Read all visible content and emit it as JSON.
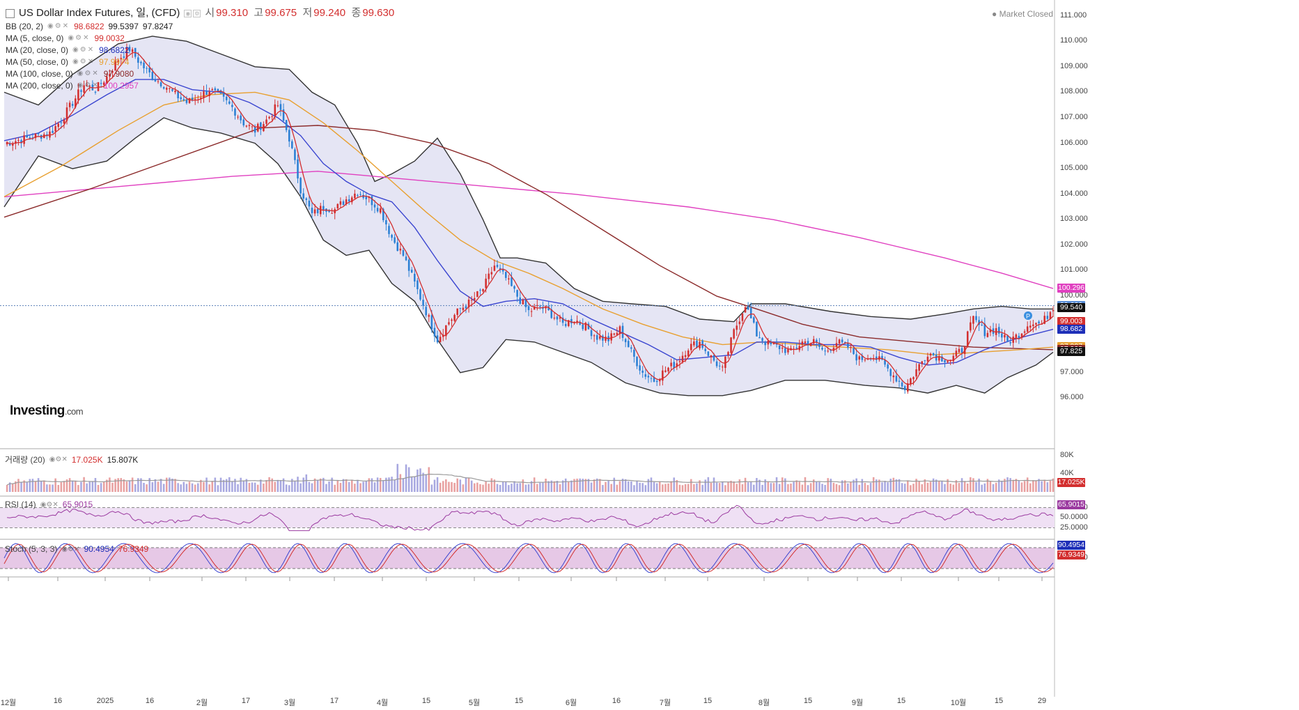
{
  "header": {
    "title": "US Dollar Index Futures, 일, (CFD)",
    "open_label": "시",
    "open": "99.310",
    "high_label": "고",
    "high": "99.675",
    "low_label": "저",
    "low": "99.240",
    "close_label": "종",
    "close": "99.630",
    "market_status": "Market Closed"
  },
  "indicators": [
    {
      "label": "BB (20, 2)",
      "v1": "98.6822",
      "v2": "99.5397",
      "v3": "97.8247",
      "color": "#d32f2f"
    },
    {
      "label": "MA (5, close, 0)",
      "v1": "99.0032",
      "color": "#d32f2f"
    },
    {
      "label": "MA (20, close, 0)",
      "v1": "98.6822",
      "color": "#1e2fb8"
    },
    {
      "label": "MA (50, close, 0)",
      "v1": "97.9974",
      "color": "#e8a030"
    },
    {
      "label": "MA (100, close, 0)",
      "v1": "97.9080",
      "color": "#8b2a2a"
    },
    {
      "label": "MA (200, close, 0)",
      "v1": "100.2957",
      "color": "#e040c0"
    }
  ],
  "volume_legend": {
    "label": "거래량 (20)",
    "v1": "17.025K",
    "v2": "15.807K"
  },
  "rsi_legend": {
    "label": "RSI (14)",
    "v1": "65.9015"
  },
  "stoch_legend": {
    "label": "Stoch (5, 3, 3)",
    "v1": "90.4954",
    "v2": "76.9349"
  },
  "logo": {
    "brand": "Investing",
    "suffix": ".com"
  },
  "price_tags": [
    {
      "text": "100.296",
      "value": 100.296,
      "color": "#e040c0"
    },
    {
      "text": "99.630",
      "value": 99.63,
      "color": "#5a8fd8"
    },
    {
      "text": "99.540",
      "value": 99.54,
      "color": "#111111"
    },
    {
      "text": "99.003",
      "value": 99.003,
      "color": "#d32f2f"
    },
    {
      "text": "98.682",
      "value": 98.682,
      "color": "#1e2fb8"
    },
    {
      "text": "97.997",
      "value": 97.997,
      "color": "#e8a030"
    },
    {
      "text": "97.908",
      "value": 97.908,
      "color": "#8b2a2a"
    },
    {
      "text": "97.825",
      "value": 97.825,
      "color": "#111111"
    }
  ],
  "volume_tags": [
    {
      "text": "17.025K",
      "color": "#d32f2f"
    }
  ],
  "rsi_tags": [
    {
      "text": "65.9015",
      "color": "#9b3aa0"
    }
  ],
  "stoch_tags": [
    {
      "text": "90.4954",
      "color": "#1e2fb8"
    },
    {
      "text": "76.9349",
      "color": "#d32f2f"
    }
  ],
  "chart_data": {
    "type": "line",
    "ylim": [
      95.0,
      111.4
    ],
    "yticks": [
      "111.000",
      "110.000",
      "109.000",
      "108.000",
      "107.000",
      "106.000",
      "105.000",
      "104.000",
      "103.000",
      "102.000",
      "101.000",
      "100.000",
      "97.000",
      "96.000"
    ],
    "ytick_values": [
      111,
      110,
      109,
      108,
      107,
      106,
      105,
      104,
      103,
      102,
      101,
      100,
      97,
      96
    ],
    "volume_ticks": [
      "80K",
      "40K"
    ],
    "volume_tick_values": [
      80000,
      40000
    ],
    "rsi_ticks": [
      "75.0000",
      "50.0000",
      "25.0000"
    ],
    "rsi_tick_values": [
      75,
      50,
      25
    ],
    "stoch_ticks": [
      "50.0000"
    ],
    "stoch_tick_values": [
      50
    ],
    "xticks": [
      "12월",
      "16",
      "2025",
      "16",
      "2월",
      "17",
      "3월",
      "17",
      "4월",
      "15",
      "5월",
      "15",
      "6월",
      "16",
      "7월",
      "15",
      "8월",
      "15",
      "9월",
      "15",
      "10월",
      "15",
      "29"
    ],
    "last_close": 99.63,
    "series": [
      {
        "key": "close",
        "points": [
          [
            0,
            106.0
          ],
          [
            8,
            106.2
          ],
          [
            16,
            106.4
          ],
          [
            20,
            106.9
          ],
          [
            24,
            107.6
          ],
          [
            28,
            108.3
          ],
          [
            32,
            108.1
          ],
          [
            36,
            108.6
          ],
          [
            40,
            109.3
          ],
          [
            44,
            109.7
          ],
          [
            48,
            109.1
          ],
          [
            52,
            108.6
          ],
          [
            56,
            108.3
          ],
          [
            60,
            107.9
          ],
          [
            64,
            107.6
          ],
          [
            68,
            107.8
          ],
          [
            72,
            108.1
          ],
          [
            76,
            107.8
          ],
          [
            80,
            107.4
          ],
          [
            84,
            106.8
          ],
          [
            88,
            106.5
          ],
          [
            92,
            106.9
          ],
          [
            96,
            107.5
          ],
          [
            100,
            106.2
          ],
          [
            104,
            104.2
          ],
          [
            108,
            103.2
          ],
          [
            112,
            103.5
          ],
          [
            116,
            103.4
          ],
          [
            120,
            103.8
          ],
          [
            124,
            104.1
          ],
          [
            128,
            103.8
          ],
          [
            132,
            103.4
          ],
          [
            136,
            102.3
          ],
          [
            140,
            101.6
          ],
          [
            144,
            100.5
          ],
          [
            148,
            99.4
          ],
          [
            152,
            98.3
          ],
          [
            156,
            99.0
          ],
          [
            160,
            99.5
          ],
          [
            164,
            99.8
          ],
          [
            168,
            100.3
          ],
          [
            172,
            101.2
          ],
          [
            176,
            100.7
          ],
          [
            180,
            100.0
          ],
          [
            184,
            99.4
          ],
          [
            188,
            99.6
          ],
          [
            192,
            99.3
          ],
          [
            196,
            98.9
          ],
          [
            200,
            99.1
          ],
          [
            204,
            98.8
          ],
          [
            208,
            98.4
          ],
          [
            212,
            98.3
          ],
          [
            216,
            98.7
          ],
          [
            220,
            97.8
          ],
          [
            224,
            97.0
          ],
          [
            228,
            96.7
          ],
          [
            232,
            97.1
          ],
          [
            236,
            97.4
          ],
          [
            240,
            98.0
          ],
          [
            244,
            98.2
          ],
          [
            248,
            97.6
          ],
          [
            252,
            97.1
          ],
          [
            256,
            98.6
          ],
          [
            260,
            99.7
          ],
          [
            264,
            98.5
          ],
          [
            268,
            98.1
          ],
          [
            272,
            98.0
          ],
          [
            276,
            97.8
          ],
          [
            280,
            98.2
          ],
          [
            284,
            98.2
          ],
          [
            288,
            97.8
          ],
          [
            292,
            98.2
          ],
          [
            296,
            98.0
          ],
          [
            300,
            97.5
          ],
          [
            304,
            97.7
          ],
          [
            308,
            97.4
          ],
          [
            312,
            96.9
          ],
          [
            316,
            96.4
          ],
          [
            320,
            97.1
          ],
          [
            324,
            97.8
          ],
          [
            328,
            97.6
          ],
          [
            332,
            97.5
          ],
          [
            336,
            97.9
          ],
          [
            340,
            99.1
          ],
          [
            344,
            98.6
          ],
          [
            348,
            98.7
          ],
          [
            352,
            98.2
          ],
          [
            356,
            98.5
          ],
          [
            360,
            99.0
          ],
          [
            364,
            98.9
          ],
          [
            368,
            99.6
          ]
        ]
      },
      {
        "key": "ma20",
        "points": [
          [
            0,
            106.1
          ],
          [
            12,
            106.4
          ],
          [
            24,
            107.1
          ],
          [
            36,
            107.9
          ],
          [
            46,
            108.5
          ],
          [
            56,
            108.5
          ],
          [
            66,
            108.1
          ],
          [
            76,
            108.0
          ],
          [
            86,
            107.6
          ],
          [
            96,
            107.0
          ],
          [
            104,
            106.3
          ],
          [
            112,
            105.2
          ],
          [
            120,
            104.5
          ],
          [
            128,
            104.0
          ],
          [
            136,
            103.7
          ],
          [
            144,
            102.7
          ],
          [
            152,
            101.4
          ],
          [
            160,
            100.2
          ],
          [
            168,
            99.6
          ],
          [
            176,
            99.8
          ],
          [
            186,
            99.9
          ],
          [
            196,
            99.7
          ],
          [
            206,
            99.1
          ],
          [
            216,
            98.6
          ],
          [
            226,
            98.1
          ],
          [
            236,
            97.5
          ],
          [
            246,
            97.6
          ],
          [
            256,
            97.7
          ],
          [
            264,
            98.2
          ],
          [
            274,
            98.2
          ],
          [
            284,
            98.1
          ],
          [
            294,
            98.1
          ],
          [
            304,
            98.0
          ],
          [
            314,
            97.6
          ],
          [
            324,
            97.3
          ],
          [
            334,
            97.4
          ],
          [
            344,
            97.9
          ],
          [
            354,
            98.3
          ],
          [
            368,
            98.7
          ]
        ]
      },
      {
        "key": "ma50",
        "points": [
          [
            0,
            103.9
          ],
          [
            20,
            105.1
          ],
          [
            40,
            106.5
          ],
          [
            56,
            107.5
          ],
          [
            72,
            107.9
          ],
          [
            88,
            108.0
          ],
          [
            100,
            107.7
          ],
          [
            112,
            106.8
          ],
          [
            124,
            105.7
          ],
          [
            136,
            104.5
          ],
          [
            148,
            103.3
          ],
          [
            160,
            102.2
          ],
          [
            172,
            101.4
          ],
          [
            184,
            100.9
          ],
          [
            196,
            100.3
          ],
          [
            210,
            99.5
          ],
          [
            224,
            98.9
          ],
          [
            238,
            98.4
          ],
          [
            252,
            98.1
          ],
          [
            266,
            98.2
          ],
          [
            280,
            98.1
          ],
          [
            294,
            98.0
          ],
          [
            310,
            97.9
          ],
          [
            326,
            97.7
          ],
          [
            342,
            97.8
          ],
          [
            356,
            97.9
          ],
          [
            368,
            98.0
          ]
        ]
      },
      {
        "key": "ma100",
        "points": [
          [
            0,
            103.1
          ],
          [
            30,
            104.2
          ],
          [
            60,
            105.4
          ],
          [
            90,
            106.6
          ],
          [
            110,
            106.7
          ],
          [
            130,
            106.5
          ],
          [
            150,
            106.0
          ],
          [
            170,
            105.2
          ],
          [
            190,
            104.0
          ],
          [
            210,
            102.6
          ],
          [
            230,
            101.2
          ],
          [
            250,
            100.0
          ],
          [
            264,
            99.5
          ],
          [
            280,
            98.9
          ],
          [
            300,
            98.4
          ],
          [
            320,
            98.2
          ],
          [
            340,
            98.0
          ],
          [
            368,
            97.9
          ]
        ]
      },
      {
        "key": "ma200",
        "points": [
          [
            0,
            103.9
          ],
          [
            40,
            104.3
          ],
          [
            80,
            104.7
          ],
          [
            110,
            104.9
          ],
          [
            140,
            104.6
          ],
          [
            170,
            104.3
          ],
          [
            200,
            104.0
          ],
          [
            240,
            103.5
          ],
          [
            270,
            103.0
          ],
          [
            300,
            102.3
          ],
          [
            330,
            101.5
          ],
          [
            350,
            100.9
          ],
          [
            368,
            100.3
          ]
        ]
      },
      {
        "key": "bb_upper",
        "points": [
          [
            0,
            108.0
          ],
          [
            12,
            107.5
          ],
          [
            24,
            108.7
          ],
          [
            40,
            109.9
          ],
          [
            52,
            110.2
          ],
          [
            64,
            110.0
          ],
          [
            76,
            109.5
          ],
          [
            88,
            109.0
          ],
          [
            100,
            108.9
          ],
          [
            108,
            108.0
          ],
          [
            116,
            107.5
          ],
          [
            124,
            106.0
          ],
          [
            130,
            104.5
          ],
          [
            136,
            104.8
          ],
          [
            144,
            105.3
          ],
          [
            152,
            106.2
          ],
          [
            160,
            104.8
          ],
          [
            168,
            103.0
          ],
          [
            174,
            101.5
          ],
          [
            180,
            101.5
          ],
          [
            190,
            101.3
          ],
          [
            200,
            100.3
          ],
          [
            210,
            99.8
          ],
          [
            220,
            99.7
          ],
          [
            232,
            99.6
          ],
          [
            244,
            99.1
          ],
          [
            256,
            99.0
          ],
          [
            262,
            99.7
          ],
          [
            274,
            99.7
          ],
          [
            290,
            99.4
          ],
          [
            304,
            99.2
          ],
          [
            318,
            99.1
          ],
          [
            330,
            99.3
          ],
          [
            340,
            99.5
          ],
          [
            350,
            99.6
          ],
          [
            360,
            99.5
          ],
          [
            368,
            99.5
          ]
        ]
      },
      {
        "key": "bb_lower",
        "points": [
          [
            0,
            103.5
          ],
          [
            12,
            105.5
          ],
          [
            24,
            105.0
          ],
          [
            36,
            105.3
          ],
          [
            46,
            106.2
          ],
          [
            56,
            107.0
          ],
          [
            66,
            106.6
          ],
          [
            76,
            106.4
          ],
          [
            88,
            106.0
          ],
          [
            96,
            105.2
          ],
          [
            104,
            103.9
          ],
          [
            112,
            102.2
          ],
          [
            120,
            101.6
          ],
          [
            128,
            101.8
          ],
          [
            136,
            100.5
          ],
          [
            144,
            99.8
          ],
          [
            152,
            98.3
          ],
          [
            160,
            97.0
          ],
          [
            168,
            97.2
          ],
          [
            176,
            98.3
          ],
          [
            186,
            98.2
          ],
          [
            196,
            97.8
          ],
          [
            206,
            97.4
          ],
          [
            218,
            96.6
          ],
          [
            230,
            96.2
          ],
          [
            240,
            96.1
          ],
          [
            252,
            96.1
          ],
          [
            262,
            96.3
          ],
          [
            274,
            96.7
          ],
          [
            288,
            96.7
          ],
          [
            302,
            96.5
          ],
          [
            314,
            96.4
          ],
          [
            324,
            96.2
          ],
          [
            334,
            96.5
          ],
          [
            344,
            96.2
          ],
          [
            352,
            96.8
          ],
          [
            362,
            97.3
          ],
          [
            368,
            97.8
          ]
        ]
      }
    ]
  }
}
